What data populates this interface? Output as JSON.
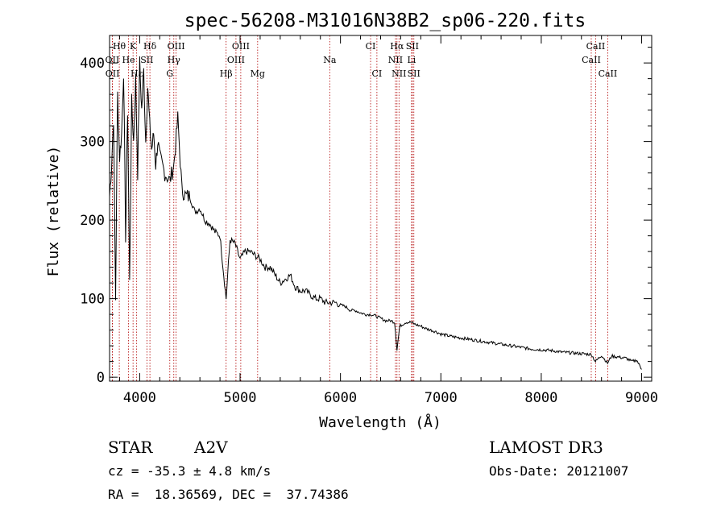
{
  "chart_data": {
    "type": "line",
    "title": "spec-56208-M31016N38B2_sp06-220.fits",
    "xlabel": "Wavelength (Å)",
    "ylabel": "Flux (relative)",
    "xlim": [
      3700,
      9100
    ],
    "ylim": [
      -5,
      435
    ],
    "x_ticks": [
      4000,
      5000,
      6000,
      7000,
      8000,
      9000
    ],
    "x_tick_labels": [
      "4000",
      "5000",
      "6000",
      "7000",
      "8000",
      "9000"
    ],
    "y_ticks": [
      0,
      100,
      200,
      300,
      400
    ],
    "y_tick_labels": [
      "0",
      "100",
      "200",
      "300",
      "400"
    ],
    "series": [
      {
        "name": "flux",
        "x": [
          3700,
          3720,
          3740,
          3760,
          3780,
          3800,
          3820,
          3840,
          3860,
          3880,
          3900,
          3920,
          3940,
          3960,
          3980,
          4000,
          4020,
          4040,
          4060,
          4080,
          4100,
          4120,
          4140,
          4160,
          4180,
          4200,
          4250,
          4300,
          4340,
          4380,
          4420,
          4460,
          4500,
          4550,
          4600,
          4650,
          4700,
          4750,
          4800,
          4861,
          4900,
          4950,
          5000,
          5050,
          5100,
          5150,
          5200,
          5250,
          5300,
          5350,
          5400,
          5450,
          5500,
          5550,
          5600,
          5650,
          5700,
          5750,
          5800,
          5850,
          5900,
          5950,
          6000,
          6050,
          6100,
          6150,
          6200,
          6250,
          6300,
          6350,
          6400,
          6450,
          6500,
          6540,
          6563,
          6590,
          6650,
          6700,
          6750,
          6800,
          6850,
          6900,
          6950,
          7000,
          7100,
          7200,
          7300,
          7400,
          7500,
          7600,
          7700,
          7800,
          7900,
          8000,
          8100,
          8200,
          8300,
          8400,
          8500,
          8540,
          8600,
          8660,
          8700,
          8750,
          8800,
          8850,
          8900,
          8950,
          9000
        ],
        "values": [
          230,
          270,
          330,
          100,
          360,
          280,
          310,
          390,
          180,
          340,
          120,
          350,
          300,
          380,
          260,
          400,
          340,
          390,
          300,
          370,
          320,
          290,
          310,
          270,
          300,
          280,
          260,
          250,
          270,
          330,
          240,
          230,
          230,
          210,
          215,
          200,
          195,
          185,
          180,
          100,
          175,
          170,
          150,
          160,
          160,
          155,
          150,
          140,
          140,
          130,
          120,
          125,
          130,
          115,
          110,
          110,
          105,
          100,
          100,
          95,
          95,
          95,
          92,
          90,
          85,
          85,
          82,
          80,
          80,
          78,
          75,
          72,
          72,
          70,
          35,
          65,
          70,
          70,
          67,
          65,
          62,
          60,
          58,
          55,
          52,
          50,
          48,
          46,
          44,
          42,
          40,
          38,
          36,
          35,
          34,
          32,
          31,
          30,
          29,
          20,
          28,
          18,
          27,
          26,
          25,
          24,
          20,
          22,
          10
        ]
      }
    ],
    "spectral_lines": [
      {
        "label": "Hθ",
        "x": 3797,
        "row": 1
      },
      {
        "label": "K",
        "x": 3934,
        "row": 1
      },
      {
        "label": "Hδ",
        "x": 4102,
        "row": 1
      },
      {
        "label": "OIII",
        "x": 4363,
        "row": 1
      },
      {
        "label": "OIII",
        "x": 5007,
        "row": 1
      },
      {
        "label": "CI",
        "x": 6300,
        "row": 1
      },
      {
        "label": "Hα",
        "x": 6563,
        "row": 1
      },
      {
        "label": "SII",
        "x": 6716,
        "row": 1
      },
      {
        "label": "CaII",
        "x": 8542,
        "row": 1
      },
      {
        "label": "OII",
        "x": 3727,
        "row": 2
      },
      {
        "label": "He",
        "x": 3889,
        "row": 2
      },
      {
        "label": "SII",
        "x": 4072,
        "row": 2
      },
      {
        "label": "Hγ",
        "x": 4340,
        "row": 2
      },
      {
        "label": "OIII",
        "x": 4959,
        "row": 2
      },
      {
        "label": "Na",
        "x": 5893,
        "row": 2
      },
      {
        "label": "NII",
        "x": 6548,
        "row": 2
      },
      {
        "label": "Li",
        "x": 6708,
        "row": 2
      },
      {
        "label": "CaII",
        "x": 8498,
        "row": 2
      },
      {
        "label": "OII",
        "x": 3729,
        "row": 3
      },
      {
        "label": "Hε",
        "x": 3970,
        "row": 3
      },
      {
        "label": "G",
        "x": 4300,
        "row": 3
      },
      {
        "label": "Hβ",
        "x": 4861,
        "row": 3
      },
      {
        "label": "Mg",
        "x": 5175,
        "row": 3
      },
      {
        "label": "CI",
        "x": 6363,
        "row": 3
      },
      {
        "label": "NII",
        "x": 6583,
        "row": 3
      },
      {
        "label": "SII",
        "x": 6731,
        "row": 3
      },
      {
        "label": "CaII",
        "x": 8662,
        "row": 3
      }
    ]
  },
  "info": {
    "class": "STAR",
    "subclass": "A2V",
    "survey": "LAMOST DR3",
    "cz": "cz = -35.3 ± 4.8 km/s",
    "obs_date": "Obs-Date: 20121007",
    "coords": "RA =  18.36569, DEC =  37.74386"
  },
  "colors": {
    "line_marker": "#b00000",
    "spectrum": "#000000",
    "axes": "#000000"
  }
}
